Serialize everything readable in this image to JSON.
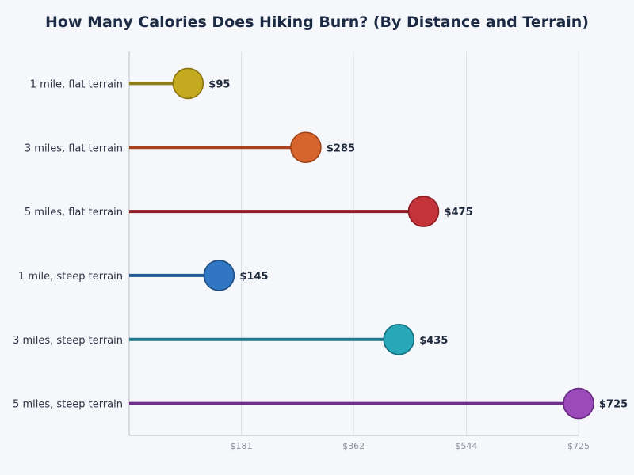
{
  "chart_data": {
    "type": "lollipop",
    "title": "How Many Calories Does Hiking Burn? (By Distance and Terrain)",
    "categories": [
      "1 mile, flat terrain",
      "3 miles, flat terrain",
      "5 miles, flat terrain",
      "1 mile, steep terrain",
      "3 miles, steep terrain",
      "5 miles, steep terrain"
    ],
    "values": [
      95,
      285,
      475,
      145,
      435,
      725
    ],
    "value_labels": [
      "$95",
      "$285",
      "$475",
      "$145",
      "$435",
      "$725"
    ],
    "xlim": [
      0,
      725
    ],
    "xticks": [
      181,
      362,
      544,
      725
    ],
    "xtick_labels": [
      "$181",
      "$362",
      "$544",
      "$725"
    ],
    "grid": true,
    "colors": [
      {
        "line": "#8f7d17",
        "fill": "#c4aa1f",
        "stroke": "#8a7410"
      },
      {
        "line": "#a8411c",
        "fill": "#d7632d",
        "stroke": "#9c4418"
      },
      {
        "line": "#8e1f26",
        "fill": "#c5333a",
        "stroke": "#8a1c22"
      },
      {
        "line": "#225a91",
        "fill": "#3176c2",
        "stroke": "#1f4f85"
      },
      {
        "line": "#1f7b8e",
        "fill": "#27a7b8",
        "stroke": "#167180"
      },
      {
        "line": "#6d2e8c",
        "fill": "#9b4ab9",
        "stroke": "#67297f"
      }
    ]
  }
}
